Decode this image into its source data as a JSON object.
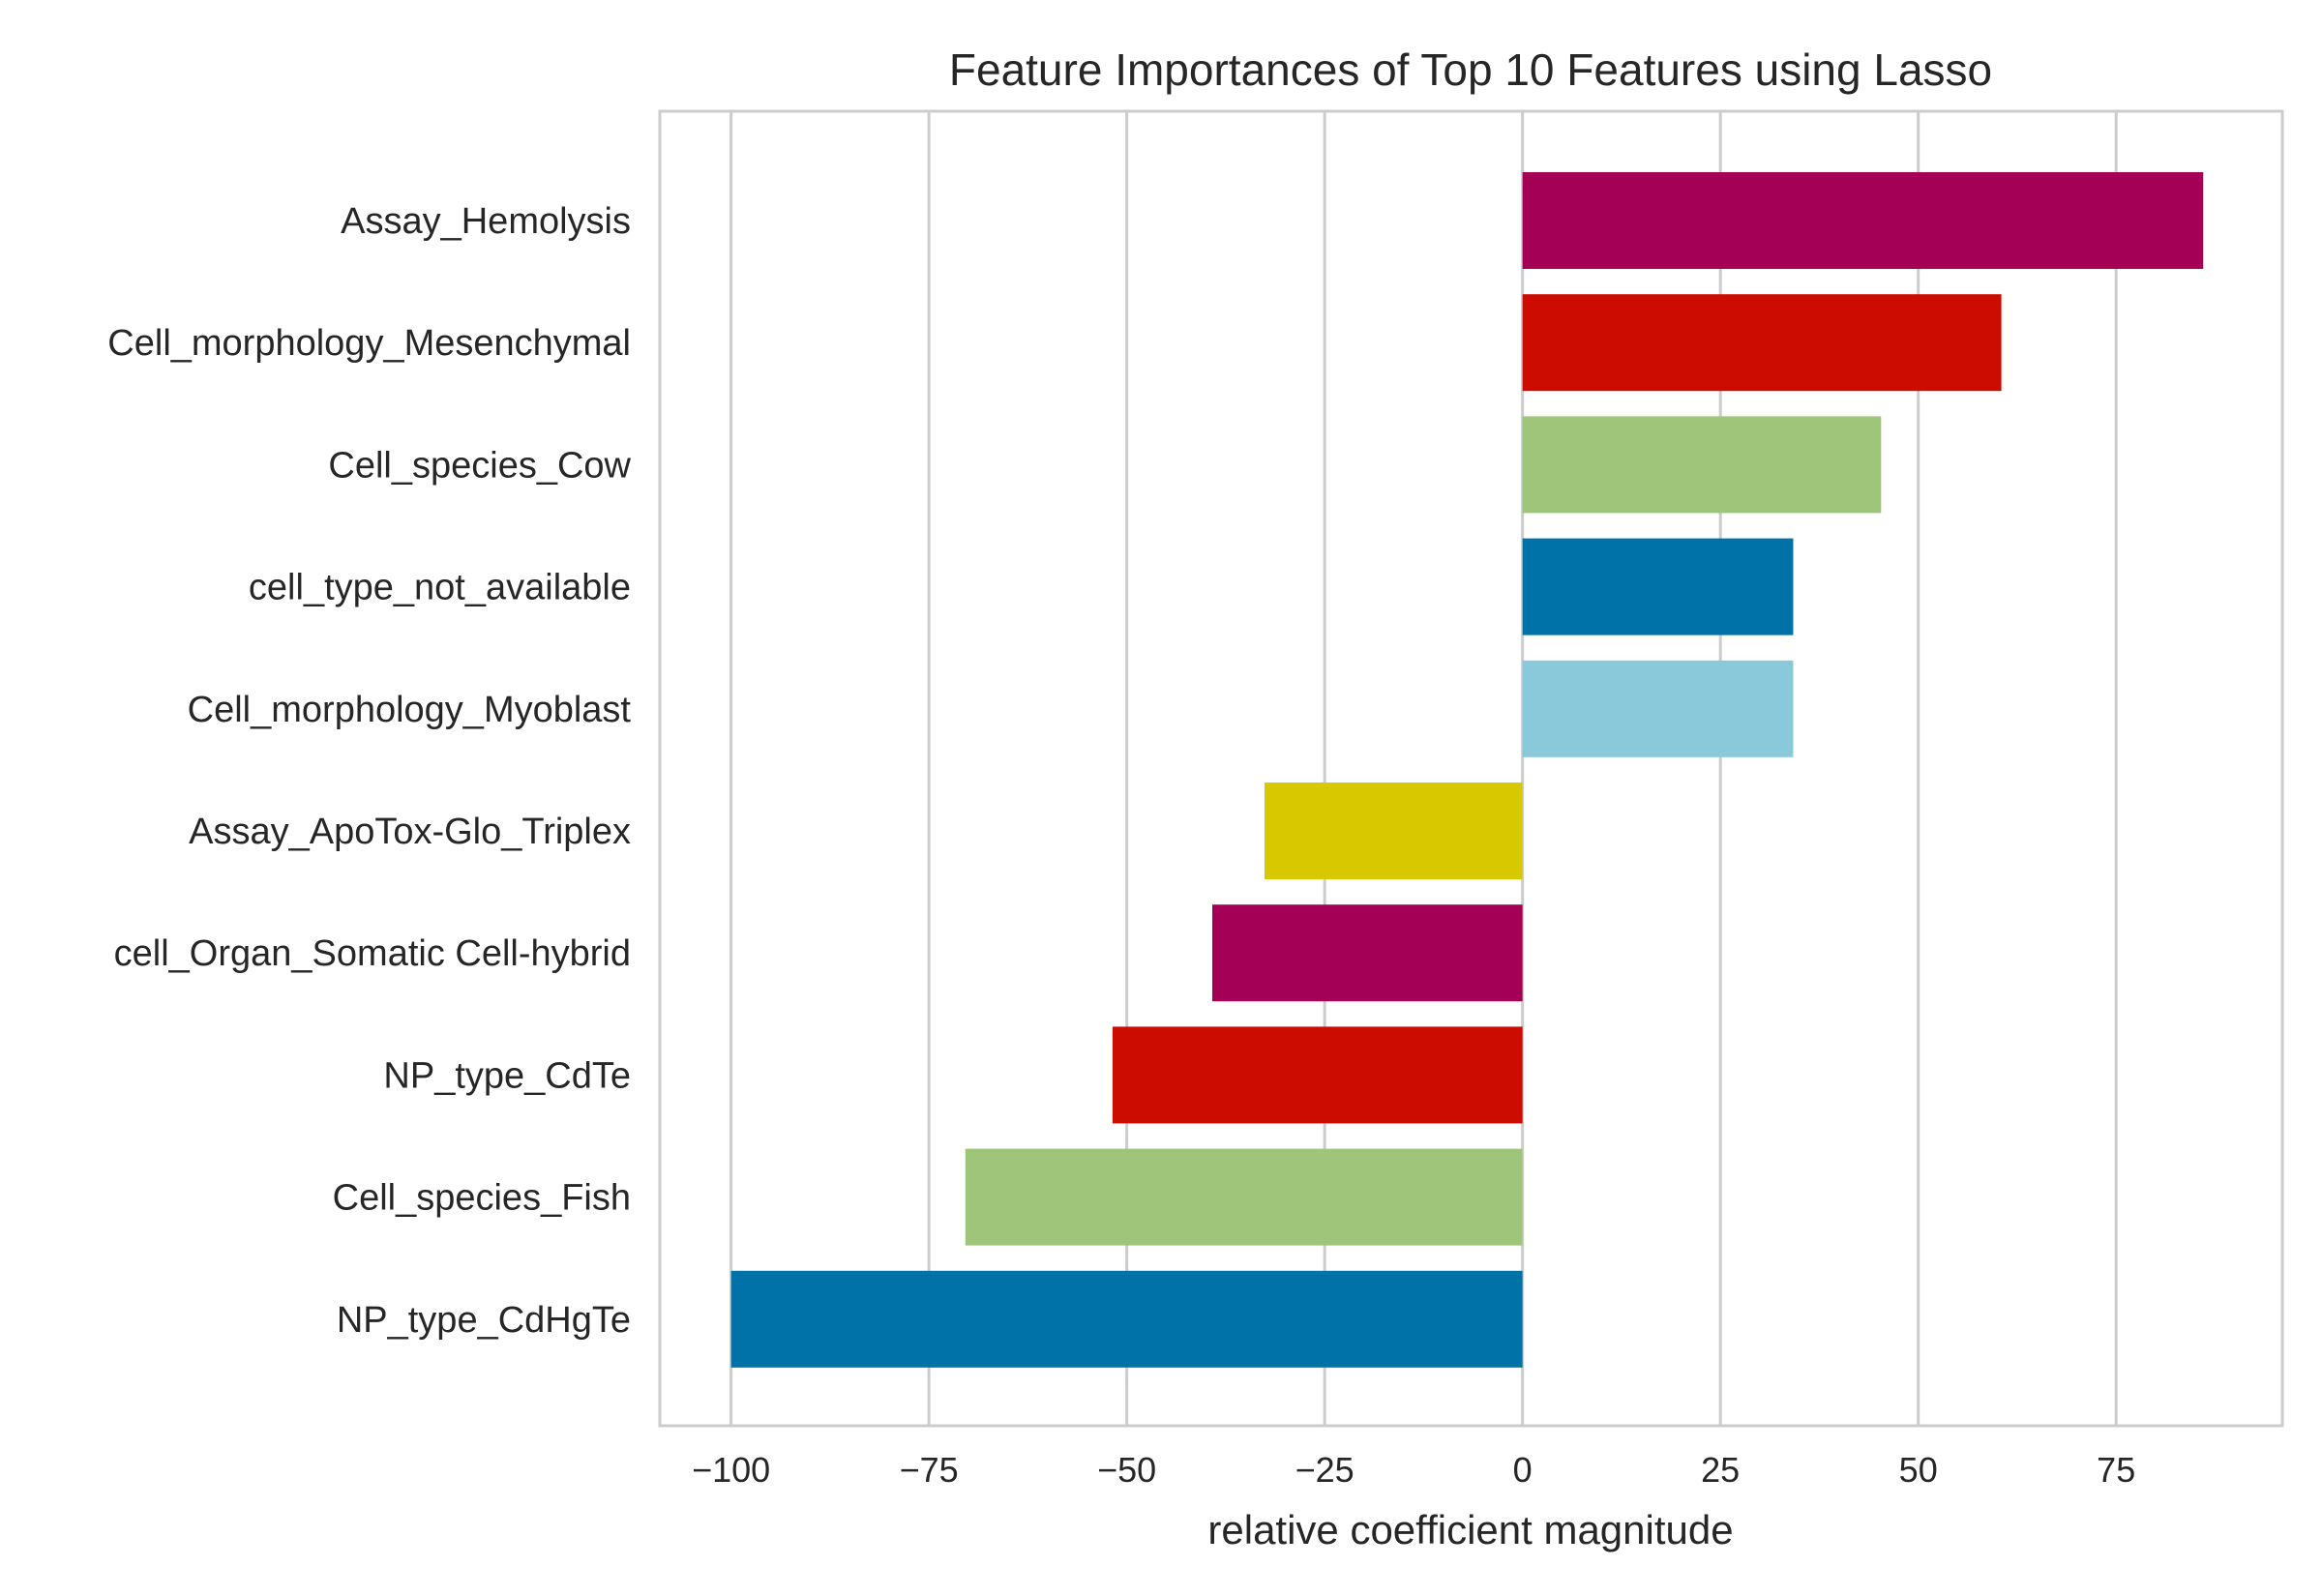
{
  "chart_data": {
    "type": "bar",
    "orientation": "horizontal",
    "title": "Feature Importances of Top 10 Features using Lasso",
    "xlabel": "relative coefficient magnitude",
    "ylabel": "",
    "xlim": [
      -109,
      96
    ],
    "xticks": [
      -100,
      -75,
      -50,
      -25,
      0,
      25,
      50,
      75
    ],
    "xtick_labels": [
      "−100",
      "−75",
      "−50",
      "−25",
      "0",
      "25",
      "50",
      "75"
    ],
    "grid": "x",
    "categories": [
      "Assay_Hemolysis",
      "Cell_morphology_Mesenchymal",
      "Cell_species_Cow",
      "cell_type_not_available",
      "Cell_morphology_Myoblast",
      "Assay_ApoTox-Glo_Triplex",
      "cell_Organ_Somatic Cell-hybrid",
      "NP_type_CdTe",
      "Cell_species_Fish",
      "NP_type_CdHgTe"
    ],
    "values": [
      86,
      60.5,
      45.3,
      34.2,
      34.2,
      -32.6,
      -39.2,
      -51.8,
      -70.4,
      -100
    ],
    "colors": [
      "#a40055",
      "#cc0c00",
      "#9fc57b",
      "#0072a7",
      "#8ac9d9",
      "#d8c800",
      "#a40055",
      "#cc0c00",
      "#9fc57b",
      "#0072a7"
    ]
  }
}
